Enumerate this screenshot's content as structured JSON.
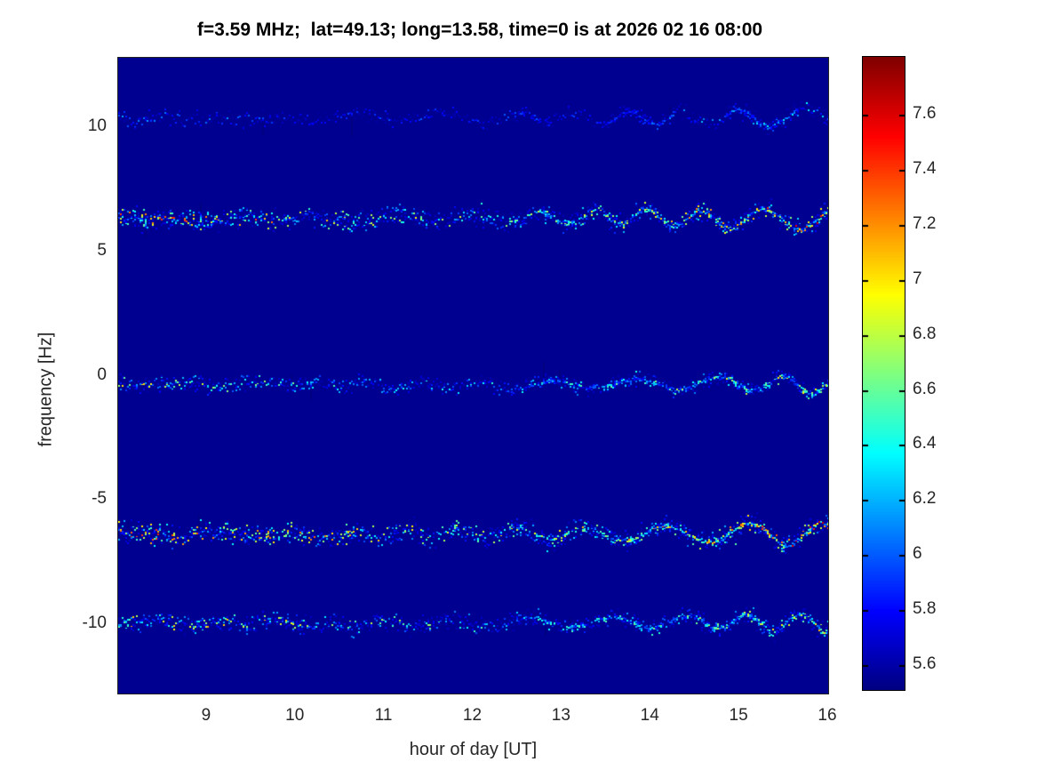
{
  "chart_data": {
    "type": "heatmap",
    "title": "f=3.59 MHz;  lat=49.13; long=13.58, time=0 is at 2026 02 16 08:00",
    "xlabel": "hour of day [UT]",
    "ylabel": "frequency [Hz]",
    "xlim": [
      8,
      16
    ],
    "ylim": [
      -12.8,
      12.8
    ],
    "xtick_values": [
      9,
      10,
      11,
      12,
      13,
      14,
      15,
      16
    ],
    "xtick_labels": [
      "9",
      "10",
      "11",
      "12",
      "13",
      "14",
      "15",
      "16"
    ],
    "ytick_values": [
      10,
      5,
      0,
      -5,
      -10
    ],
    "ytick_labels": [
      "10",
      "5",
      "0",
      "-5",
      "-10"
    ],
    "colormap": "jet",
    "clim": [
      5.51,
      7.81
    ],
    "colorbar_tick_values": [
      7.6,
      7.4,
      7.2,
      7.0,
      6.8,
      6.6,
      6.4,
      6.2,
      6.0,
      5.8,
      5.6
    ],
    "colorbar_tick_labels": [
      "7.6",
      "7.4",
      "7.2",
      "7",
      "6.8",
      "6.6",
      "6.4",
      "6.2",
      "6",
      "5.8",
      "5.6"
    ],
    "background_color": "#000090",
    "legend": "none",
    "grid": false,
    "bands": [
      {
        "name": "doppler-line-plus-10.4Hz",
        "center_freq_hz": 10.4,
        "spread_hz": 0.22,
        "max_value": 6.9,
        "density": 0.4,
        "envelope": [
          0.55,
          0.45,
          0.3,
          0.35,
          0.35,
          0.3,
          0.55,
          0.7
        ],
        "wave_amp_hz": 0.18,
        "wave_growth": 0.9,
        "intermittent": true
      },
      {
        "name": "doppler-line-plus-6.3Hz",
        "center_freq_hz": 6.35,
        "spread_hz": 0.3,
        "max_value": 7.7,
        "density": 0.85,
        "envelope": [
          0.9,
          0.9,
          0.75,
          0.65,
          0.6,
          0.65,
          0.85,
          1.0
        ],
        "wave_amp_hz": 0.2,
        "wave_growth": 1.0,
        "intermittent": false
      },
      {
        "name": "doppler-line-0Hz",
        "center_freq_hz": -0.3,
        "spread_hz": 0.22,
        "max_value": 7.5,
        "density": 0.65,
        "envelope": [
          0.8,
          0.65,
          0.55,
          0.5,
          0.5,
          0.55,
          0.7,
          0.8
        ],
        "wave_amp_hz": 0.15,
        "wave_growth": 0.9,
        "intermittent": false
      },
      {
        "name": "doppler-line-minus-6.3Hz",
        "center_freq_hz": -6.35,
        "spread_hz": 0.3,
        "max_value": 7.7,
        "density": 0.9,
        "envelope": [
          0.95,
          0.85,
          0.8,
          0.7,
          0.7,
          0.75,
          0.9,
          1.0
        ],
        "wave_amp_hz": 0.2,
        "wave_growth": 1.0,
        "intermittent": false
      },
      {
        "name": "doppler-line-minus-9.9Hz",
        "center_freq_hz": -9.9,
        "spread_hz": 0.25,
        "max_value": 7.5,
        "density": 0.75,
        "envelope": [
          0.9,
          0.85,
          0.75,
          0.6,
          0.5,
          0.55,
          0.65,
          0.85
        ],
        "wave_amp_hz": 0.18,
        "wave_growth": 0.85,
        "intermittent": false
      }
    ]
  }
}
